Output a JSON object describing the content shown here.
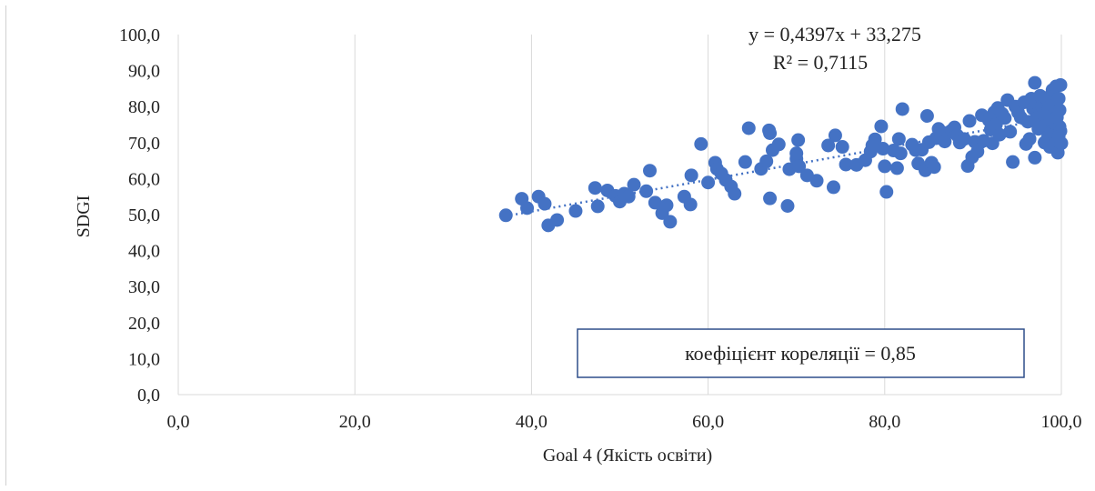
{
  "chart_data": {
    "type": "scatter",
    "xlabel": "Goal 4 (Якість освіти)",
    "ylabel": "SDGI",
    "xlim": [
      0,
      100
    ],
    "ylim": [
      0,
      100
    ],
    "x_ticks": [
      "0,0",
      "20,0",
      "40,0",
      "60,0",
      "80,0",
      "100,0"
    ],
    "y_ticks": [
      "0,0",
      "10,0",
      "20,0",
      "30,0",
      "40,0",
      "50,0",
      "60,0",
      "70,0",
      "80,0",
      "90,0",
      "100,0"
    ],
    "grid": "vertical",
    "marker_color": "#4472c4",
    "trendline": {
      "slope": 0.4397,
      "intercept": 33.275,
      "x_range": [
        37,
        100
      ],
      "equation": "y = 0,4397x + 33,275",
      "r2": "R² = 0,7115"
    },
    "annotation": "коефіцієнт кореляції = 0,85",
    "points": [
      [
        37.1,
        49.8
      ],
      [
        38.9,
        54.4
      ],
      [
        39.5,
        51.8
      ],
      [
        40.8,
        55.0
      ],
      [
        41.5,
        53.0
      ],
      [
        41.9,
        47.0
      ],
      [
        42.9,
        48.5
      ],
      [
        45.0,
        51.0
      ],
      [
        47.2,
        57.4
      ],
      [
        47.5,
        52.3
      ],
      [
        48.6,
        56.7
      ],
      [
        49.5,
        55.2
      ],
      [
        50.0,
        53.6
      ],
      [
        50.5,
        55.8
      ],
      [
        51.0,
        55.0
      ],
      [
        51.6,
        58.3
      ],
      [
        53.0,
        56.5
      ],
      [
        53.4,
        62.2
      ],
      [
        54.0,
        53.3
      ],
      [
        54.8,
        50.4
      ],
      [
        55.3,
        52.6
      ],
      [
        55.7,
        48.0
      ],
      [
        57.3,
        55.0
      ],
      [
        58.0,
        52.8
      ],
      [
        58.1,
        60.9
      ],
      [
        59.2,
        69.6
      ],
      [
        60.0,
        58.9
      ],
      [
        60.8,
        64.4
      ],
      [
        61.0,
        62.7
      ],
      [
        61.5,
        61.4
      ],
      [
        62.0,
        59.6
      ],
      [
        62.6,
        57.8
      ],
      [
        63.0,
        55.8
      ],
      [
        64.2,
        64.6
      ],
      [
        64.6,
        74.0
      ],
      [
        66.0,
        62.7
      ],
      [
        66.6,
        64.8
      ],
      [
        66.9,
        73.4
      ],
      [
        67.0,
        54.5
      ],
      [
        67.0,
        72.6
      ],
      [
        67.3,
        67.9
      ],
      [
        68.0,
        69.5
      ],
      [
        69.0,
        52.4
      ],
      [
        69.2,
        62.6
      ],
      [
        70.0,
        65.5
      ],
      [
        70.2,
        70.7
      ],
      [
        70.0,
        67.0
      ],
      [
        70.3,
        63.4
      ],
      [
        71.2,
        60.9
      ],
      [
        72.3,
        59.4
      ],
      [
        73.6,
        69.2
      ],
      [
        74.2,
        57.6
      ],
      [
        74.4,
        72.0
      ],
      [
        75.2,
        68.8
      ],
      [
        75.6,
        63.9
      ],
      [
        76.8,
        63.8
      ],
      [
        77.8,
        65.1
      ],
      [
        78.4,
        67.5
      ],
      [
        78.6,
        69.2
      ],
      [
        78.9,
        70.9
      ],
      [
        79.6,
        74.5
      ],
      [
        79.8,
        68.3
      ],
      [
        80.0,
        63.4
      ],
      [
        80.2,
        56.3
      ],
      [
        81.0,
        67.8
      ],
      [
        81.4,
        62.9
      ],
      [
        81.6,
        71.0
      ],
      [
        81.8,
        67.0
      ],
      [
        82.0,
        79.3
      ],
      [
        83.1,
        69.4
      ],
      [
        83.5,
        67.9
      ],
      [
        83.8,
        64.2
      ],
      [
        84.2,
        68.0
      ],
      [
        84.6,
        62.3
      ],
      [
        84.8,
        77.4
      ],
      [
        85.0,
        70.1
      ],
      [
        85.3,
        64.4
      ],
      [
        85.6,
        63.2
      ],
      [
        85.8,
        71.2
      ],
      [
        86.1,
        73.8
      ],
      [
        86.4,
        72.0
      ],
      [
        86.8,
        70.3
      ],
      [
        87.2,
        72.8
      ],
      [
        87.6,
        73.4
      ],
      [
        87.9,
        74.2
      ],
      [
        88.2,
        72.0
      ],
      [
        88.5,
        70.0
      ],
      [
        89.0,
        71.0
      ],
      [
        89.4,
        63.5
      ],
      [
        89.6,
        76.0
      ],
      [
        89.9,
        66.0
      ],
      [
        90.2,
        70.2
      ],
      [
        90.5,
        67.5
      ],
      [
        90.8,
        70.0
      ],
      [
        91.0,
        77.6
      ],
      [
        91.2,
        70.5
      ],
      [
        91.8,
        76.2
      ],
      [
        92.0,
        73.6
      ],
      [
        92.2,
        69.8
      ],
      [
        92.4,
        78.4
      ],
      [
        92.6,
        75.0
      ],
      [
        92.8,
        79.6
      ],
      [
        93.0,
        72.2
      ],
      [
        93.3,
        78.0
      ],
      [
        93.6,
        76.8
      ],
      [
        93.9,
        81.8
      ],
      [
        94.2,
        73.0
      ],
      [
        94.5,
        64.6
      ],
      [
        94.8,
        80.0
      ],
      [
        95.1,
        78.4
      ],
      [
        95.4,
        77.0
      ],
      [
        95.8,
        81.2
      ],
      [
        96.0,
        69.6
      ],
      [
        96.2,
        75.8
      ],
      [
        96.4,
        71.0
      ],
      [
        96.6,
        82.2
      ],
      [
        96.8,
        79.4
      ],
      [
        97.0,
        86.6
      ],
      [
        97.0,
        65.8
      ],
      [
        97.1,
        76.6
      ],
      [
        97.2,
        81.0
      ],
      [
        97.4,
        73.8
      ],
      [
        97.6,
        83.0
      ],
      [
        97.8,
        80.2
      ],
      [
        98.0,
        77.8
      ],
      [
        98.1,
        70.0
      ],
      [
        98.2,
        74.8
      ],
      [
        98.3,
        82.4
      ],
      [
        98.4,
        78.0
      ],
      [
        98.5,
        71.6
      ],
      [
        98.6,
        79.8
      ],
      [
        98.7,
        68.8
      ],
      [
        98.8,
        76.4
      ],
      [
        98.9,
        73.0
      ],
      [
        99.0,
        84.6
      ],
      [
        99.1,
        80.2
      ],
      [
        99.2,
        72.4
      ],
      [
        99.3,
        75.4
      ],
      [
        99.4,
        85.6
      ],
      [
        99.5,
        70.2
      ],
      [
        99.5,
        77.0
      ],
      [
        99.6,
        67.2
      ],
      [
        99.7,
        82.2
      ],
      [
        99.8,
        74.4
      ],
      [
        99.8,
        79.0
      ],
      [
        99.9,
        86.0
      ],
      [
        99.9,
        73.2
      ],
      [
        100.0,
        69.8
      ],
      [
        99.7,
        71.6
      ]
    ]
  }
}
